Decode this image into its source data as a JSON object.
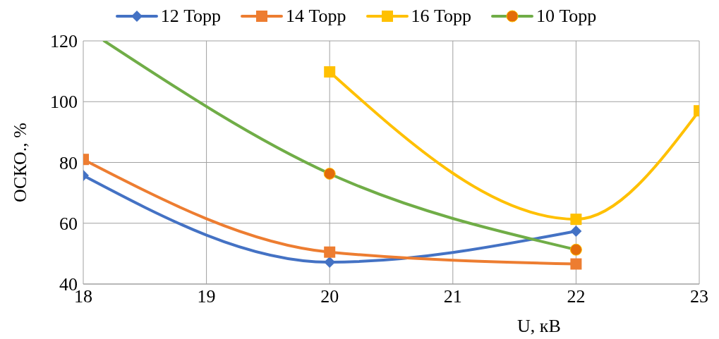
{
  "chart_data": {
    "type": "line",
    "xlabel": "U, кВ",
    "ylabel": "ОСКО., %",
    "xlim": [
      18,
      23
    ],
    "xticks": [
      18,
      19,
      20,
      21,
      22,
      23
    ],
    "ylim": [
      40,
      120
    ],
    "yticks": [
      40,
      60,
      80,
      100,
      120
    ],
    "grid": true,
    "legend": "top",
    "line_style": "solid",
    "series": [
      {
        "name": "12 Торр",
        "color": "#4472c4",
        "marker": "diamond",
        "x": [
          18,
          20,
          22
        ],
        "values": [
          75.7,
          47.2,
          57.4
        ]
      },
      {
        "name": "14 Торр",
        "color": "#ed7d31",
        "marker": "square",
        "x": [
          18,
          20,
          22
        ],
        "values": [
          81,
          50.5,
          46.6
        ]
      },
      {
        "name": "16 Торр",
        "color": "#ffc000",
        "marker": "square",
        "x": [
          20,
          22,
          23
        ],
        "values": [
          109.8,
          61.3,
          97
        ]
      },
      {
        "name": "10 Торр",
        "color": "#70ad47",
        "marker": "circle",
        "colors": [
          null,
          "#e36c09",
          "#e36c09"
        ],
        "x": [
          18.17,
          20,
          22
        ],
        "values": [
          120,
          76.3,
          51.3
        ]
      }
    ]
  }
}
